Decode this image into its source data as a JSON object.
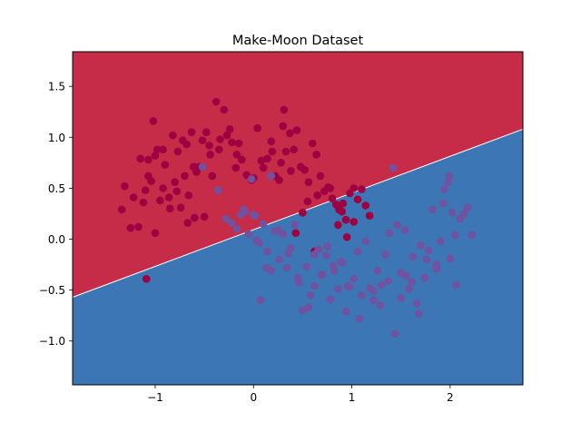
{
  "chart_data": {
    "type": "scatter",
    "title": "Make-Moon Dataset",
    "xlabel": "",
    "ylabel": "",
    "xlim": [
      -1.84,
      2.74
    ],
    "ylim": [
      -1.43,
      1.84
    ],
    "x_ticks": [
      -1,
      0,
      1,
      2
    ],
    "x_tick_labels": [
      "−1",
      "0",
      "1",
      "2"
    ],
    "y_ticks": [
      -1.0,
      -0.5,
      0.0,
      0.5,
      1.0,
      1.5
    ],
    "y_tick_labels": [
      "−1.0",
      "−0.5",
      "0.0",
      "0.5",
      "1.0",
      "1.5"
    ],
    "grid": false,
    "decision_boundary": {
      "points": [
        [
          -1.84,
          -0.57
        ],
        [
          2.74,
          1.08
        ]
      ],
      "upper_region_color": "#c62b48",
      "lower_region_color": "#3d76b4"
    },
    "series": [
      {
        "color": "#9e0142",
        "x": [
          -1.34,
          -1.31,
          -1.25,
          -1.22,
          -1.17,
          -1.15,
          -1.12,
          -1.1,
          -1.07,
          -1.04,
          -1.0,
          -0.98,
          -0.95,
          -0.92,
          -0.9,
          -0.86,
          -0.82,
          -0.8,
          -0.77,
          -0.74,
          -0.72,
          -0.7,
          -0.68,
          -0.66,
          -0.63,
          -0.6,
          -0.58,
          -0.55,
          -0.52,
          -0.48,
          -0.45,
          -0.42,
          -0.38,
          -0.35,
          -0.3,
          -0.27,
          -0.22,
          -0.18,
          -0.15,
          -0.12,
          -0.07,
          -0.02,
          0.04,
          0.1,
          0.14,
          0.18,
          0.22,
          0.26,
          0.3,
          0.33,
          0.37,
          0.41,
          0.44,
          0.48,
          0.52,
          0.56,
          0.6,
          0.64,
          0.68,
          0.72,
          0.76,
          0.8,
          0.84,
          0.87,
          0.91,
          0.94,
          0.98,
          1.02,
          1.06,
          1.1,
          1.14,
          1.18,
          -1.07,
          -1.02,
          -0.92,
          -0.85,
          -0.78,
          -0.67,
          -0.61,
          -0.5,
          -0.44,
          -0.34,
          -0.24,
          -0.17,
          0.0,
          0.08,
          0.19,
          0.28,
          0.38,
          0.5,
          0.65,
          0.78,
          0.9,
          1.02,
          0.95,
          0.86,
          0.62,
          0.55,
          0.43,
          0.31,
          -1.0,
          -1.09
        ],
        "y": [
          0.29,
          0.52,
          0.11,
          0.41,
          0.12,
          0.79,
          0.36,
          0.48,
          0.62,
          0.57,
          0.82,
          0.88,
          0.38,
          0.88,
          0.73,
          0.41,
          1.02,
          0.56,
          0.86,
          0.31,
          0.97,
          0.62,
          0.93,
          0.43,
          1.05,
          0.21,
          0.66,
          0.71,
          0.97,
          1.05,
          0.92,
          0.62,
          1.35,
          0.88,
          1.27,
          1.02,
          0.95,
          0.7,
          0.94,
          0.78,
          0.63,
          0.58,
          1.09,
          0.7,
          0.79,
          0.96,
          0.62,
          0.58,
          1.11,
          0.86,
          1.04,
          0.88,
          1.07,
          0.71,
          0.68,
          0.56,
          0.94,
          0.83,
          0.62,
          0.47,
          0.51,
          0.4,
          0.34,
          0.29,
          0.35,
          0.19,
          0.45,
          0.5,
          0.39,
          0.49,
          0.33,
          0.23,
          0.78,
          1.16,
          0.5,
          0.3,
          0.47,
          0.16,
          0.71,
          0.22,
          0.83,
          0.98,
          1.08,
          0.83,
          0.6,
          0.77,
          0.86,
          0.75,
          0.67,
          0.26,
          0.43,
          0.5,
          0.27,
          0.17,
          0.02,
          0.14,
          -0.12,
          0.37,
          0.06,
          1.27,
          0.06,
          -0.39
        ],
        "class_label": "0"
      },
      {
        "color": "#7052a0",
        "x": [
          -0.52,
          -0.36,
          -0.28,
          -0.22,
          -0.17,
          -0.13,
          -0.09,
          -0.05,
          -0.02,
          0.02,
          0.06,
          0.1,
          0.14,
          0.18,
          0.22,
          0.26,
          0.3,
          0.34,
          0.38,
          0.42,
          0.46,
          0.5,
          0.54,
          0.58,
          0.62,
          0.66,
          0.7,
          0.74,
          0.78,
          0.82,
          0.86,
          0.9,
          0.94,
          0.98,
          1.02,
          1.06,
          1.1,
          1.14,
          1.18,
          1.22,
          1.26,
          1.3,
          1.34,
          1.38,
          1.42,
          1.46,
          1.5,
          1.54,
          1.58,
          1.62,
          1.66,
          1.7,
          1.74,
          1.78,
          1.82,
          1.86,
          1.9,
          1.94,
          1.98,
          2.02,
          2.06,
          2.1,
          2.14,
          2.18,
          2.22,
          1.44,
          1.99,
          0.07,
          0.18,
          0.35,
          0.56,
          0.69,
          0.81,
          0.96,
          1.08,
          1.22,
          1.37,
          1.55,
          1.68,
          1.86,
          2.0,
          0.0,
          0.03,
          0.13,
          0.25,
          0.45,
          0.62,
          0.75,
          0.89,
          1.29,
          1.5,
          1.61,
          1.76,
          1.93,
          2.05,
          -0.1
        ],
        "y": [
          0.71,
          0.48,
          0.2,
          0.16,
          0.1,
          0.24,
          0.27,
          0.05,
          0.59,
          0.23,
          -0.04,
          0.15,
          -0.12,
          0.62,
          0.08,
          -0.2,
          0.05,
          -0.28,
          -0.09,
          0.14,
          -0.43,
          -0.7,
          -0.27,
          -0.55,
          -0.46,
          -0.1,
          -0.35,
          -0.16,
          -0.59,
          -0.31,
          -0.49,
          -0.23,
          -0.71,
          -0.47,
          -0.39,
          -0.12,
          -0.55,
          -0.02,
          -0.48,
          -0.6,
          -0.31,
          -0.45,
          -0.15,
          0.06,
          0.7,
          0.14,
          -0.33,
          0.09,
          -0.49,
          -0.17,
          -0.63,
          -0.06,
          -0.38,
          -0.11,
          0.29,
          -0.25,
          -0.02,
          0.49,
          0.56,
          0.26,
          -0.45,
          0.2,
          0.25,
          0.31,
          0.04,
          -0.93,
          0.62,
          -0.6,
          -0.31,
          -0.14,
          -0.67,
          -0.35,
          -0.26,
          -0.46,
          -0.78,
          -0.51,
          -0.41,
          -0.36,
          -0.73,
          -0.29,
          -0.19,
          0.24,
          -0.01,
          -0.28,
          0.09,
          -0.38,
          -0.15,
          -0.07,
          -0.22,
          -0.65,
          -0.58,
          -0.42,
          -0.2,
          0.35,
          0.04,
          0.29
        ],
        "class_label": "1"
      }
    ]
  }
}
